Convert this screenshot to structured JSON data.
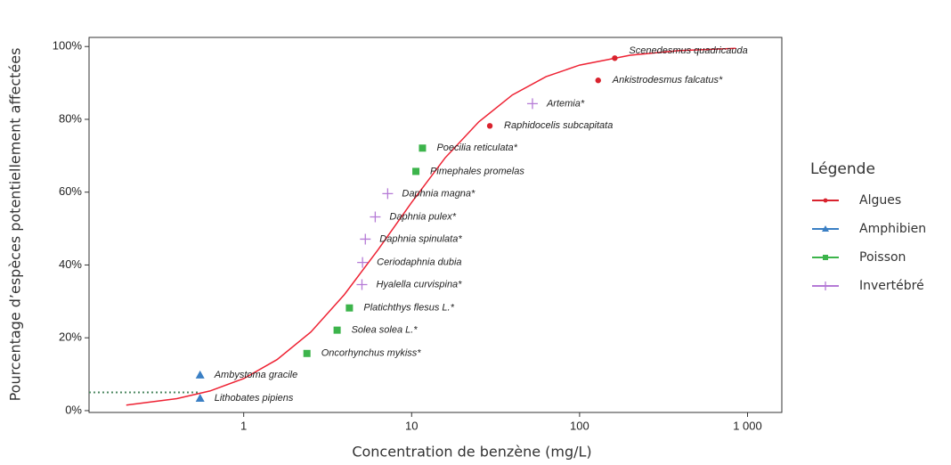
{
  "chart_data": {
    "type": "scatter",
    "x_label": "Concentration de benzène (mg/L)",
    "y_label": "Pourcentage d’espèces potentiellement affectées",
    "x_log": true,
    "xlim": [
      0.12,
      1600
    ],
    "ylim": [
      -0.5,
      102.5
    ],
    "xticks": [
      1,
      10,
      100,
      {
        "value": 1000,
        "label": "1 000"
      }
    ],
    "yticks": [
      {
        "value": 0,
        "label": "0%"
      },
      {
        "value": 20,
        "label": "20%"
      },
      {
        "value": 40,
        "label": "40%"
      },
      {
        "value": 60,
        "label": "60%"
      },
      {
        "value": 80,
        "label": "80%"
      },
      {
        "value": 100,
        "label": "100%"
      }
    ],
    "legend_title": "Légende",
    "legend_position": "right",
    "series": [
      {
        "name": "Algues",
        "color": "#d9232e",
        "marker": "circle",
        "x": [
          162,
          129,
          29.2
        ],
        "values": [
          96.8,
          90.7,
          78.2
        ],
        "labels": [
          "Scenedesmus quadricauda",
          "Ankistrodesmus falcatus*",
          "Raphidocelis subcapitata"
        ]
      },
      {
        "name": "Amphibien",
        "color": "#3a7fc4",
        "marker": "triangle",
        "x": [
          0.55,
          0.55
        ],
        "values": [
          9.8,
          3.4
        ],
        "labels": [
          "Ambystoma gracile",
          "Lithobates pipiens"
        ]
      },
      {
        "name": "Poisson",
        "color": "#3cb44b",
        "marker": "square",
        "x": [
          11.6,
          10.6,
          4.26,
          3.6,
          2.38
        ],
        "values": [
          72.1,
          65.7,
          28.2,
          22.1,
          15.7
        ],
        "labels": [
          "Poecilia reticulata*",
          "Pimephales promelas",
          "Platichthys flesus L.*",
          "Solea solea L.*",
          "Oncorhynchus mykiss*"
        ]
      },
      {
        "name": "Invertébré",
        "color": "#b57ad6",
        "marker": "plus",
        "x": [
          52.4,
          7.2,
          6.07,
          5.3,
          5.1,
          5.06
        ],
        "values": [
          84.3,
          59.6,
          53.2,
          47.1,
          40.7,
          34.6
        ],
        "labels": [
          "Artemia*",
          "Daphnia magna*",
          "Daphnia pulex*",
          "Daphnia spinulata*",
          "Ceriodaphnia dubia",
          "Hyalella curvispina*"
        ]
      }
    ],
    "fit": {
      "color": "#ee2233",
      "x": [
        0.2,
        0.4,
        0.63,
        1,
        1.58,
        2.51,
        3.98,
        6.31,
        10,
        15.8,
        25.1,
        39.8,
        63.1,
        100,
        200,
        398,
        851
      ],
      "values": [
        1.5,
        3.3,
        5.4,
        8.8,
        14.0,
        21.6,
        31.9,
        44.2,
        57.2,
        69.4,
        79.3,
        86.7,
        91.7,
        94.9,
        97.6,
        98.9,
        99.5
      ]
    },
    "reference_line": {
      "x": 0.55,
      "y": 5,
      "color": "#4f8a63"
    }
  }
}
